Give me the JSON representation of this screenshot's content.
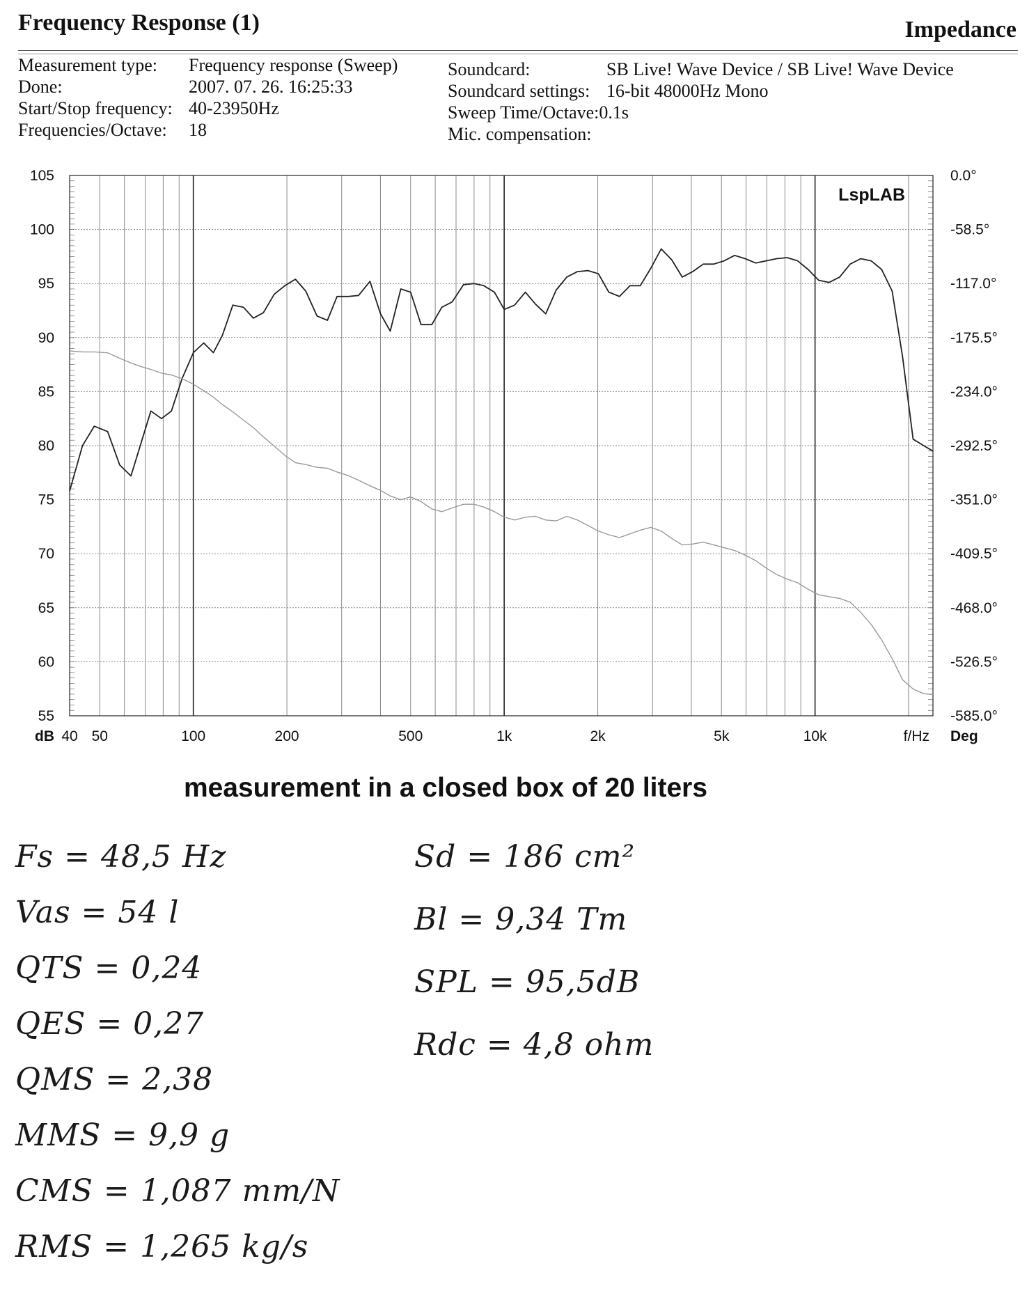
{
  "header": {
    "title": "Frequency Response (1)",
    "right_title": "Impedance"
  },
  "meta_left": [
    {
      "label": "Measurement type:",
      "value": "Frequency response (Sweep)"
    },
    {
      "label": "Done:",
      "value": "2007. 07. 26.  16:25:33"
    },
    {
      "label": "Start/Stop frequency:",
      "value": "40-23950Hz"
    },
    {
      "label": "Frequencies/Octave:",
      "value": "18"
    }
  ],
  "meta_right": [
    {
      "label": "Soundcard:",
      "value": "SB Live! Wave Device / SB Live! Wave Device"
    },
    {
      "label": "Soundcard settings:",
      "value": "16-bit  48000Hz  Mono"
    },
    {
      "label": "Sweep Time/Octave:",
      "value": "0.1s"
    },
    {
      "label": "Mic. compensation:",
      "value": ""
    }
  ],
  "chart_data": {
    "type": "line",
    "brand": "LspLAB",
    "xlabel": "f/Hz",
    "ylabel_left": "dB",
    "ylabel_right": "Deg",
    "x_scale": "log",
    "xlim": [
      40,
      23950
    ],
    "ylim": [
      55,
      105
    ],
    "ylim_right": [
      -585.0,
      0.0
    ],
    "x_tick_labels": [
      {
        "v": 40,
        "t": "40"
      },
      {
        "v": 50,
        "t": "50"
      },
      {
        "v": 100,
        "t": "100"
      },
      {
        "v": 200,
        "t": "200"
      },
      {
        "v": 500,
        "t": "500"
      },
      {
        "v": 1000,
        "t": "1k"
      },
      {
        "v": 2000,
        "t": "2k"
      },
      {
        "v": 5000,
        "t": "5k"
      },
      {
        "v": 10000,
        "t": "10k"
      }
    ],
    "y_ticks_left": [
      105,
      100,
      95,
      90,
      85,
      80,
      75,
      70,
      65,
      60,
      55
    ],
    "y_ticks_right": [
      "0.0°",
      "-58.5°",
      "-117.0°",
      "-175.5°",
      "-234.0°",
      "-292.5°",
      "-351.0°",
      "-409.5°",
      "-468.0°",
      "-526.5°",
      "-585.0°"
    ],
    "grid": true,
    "series": [
      {
        "color": "#222222",
        "x": [
          40,
          44,
          48,
          53,
          58,
          63,
          68,
          73,
          79,
          85,
          92,
          100,
          108,
          116,
          124,
          134,
          145,
          156,
          168,
          182,
          197,
          213,
          230,
          250,
          270,
          290,
          315,
          340,
          370,
          400,
          430,
          465,
          500,
          540,
          585,
          630,
          680,
          740,
          800,
          860,
          930,
          1000,
          1080,
          1170,
          1260,
          1360,
          1470,
          1590,
          1720,
          1860,
          2010,
          2170,
          2350,
          2540,
          2740,
          2960,
          3200,
          3460,
          3740,
          4040,
          4370,
          4720,
          5100,
          5510,
          5960,
          6440,
          6960,
          7520,
          8130,
          8790,
          9500,
          10270,
          11100,
          12000,
          12970,
          14020,
          15150,
          16380,
          17700,
          19130,
          20680,
          22350,
          23950
        ],
        "values": [
          75.8,
          80.0,
          81.8,
          81.3,
          78.2,
          77.2,
          80.3,
          83.2,
          82.5,
          83.2,
          86.2,
          88.6,
          89.5,
          88.6,
          90.2,
          93.0,
          92.8,
          91.8,
          92.3,
          94.0,
          94.8,
          95.4,
          94.3,
          92.0,
          91.6,
          93.8,
          93.8,
          93.9,
          95.2,
          92.2,
          90.6,
          94.5,
          94.2,
          91.2,
          91.2,
          92.8,
          93.3,
          94.9,
          95.0,
          94.8,
          94.2,
          92.6,
          93.0,
          94.2,
          93.1,
          92.2,
          94.4,
          95.6,
          96.1,
          96.2,
          95.9,
          94.2,
          93.8,
          94.8,
          94.8,
          96.4,
          98.2,
          97.2,
          95.6,
          96.1,
          96.8,
          96.8,
          97.1,
          97.6,
          97.3,
          96.9,
          97.1,
          97.3,
          97.4,
          97.1,
          96.3,
          95.3,
          95.1,
          95.6,
          96.8,
          97.3,
          97.1,
          96.3,
          94.3,
          88.2,
          80.6,
          80.0,
          79.5
        ]
      },
      {
        "color": "#9a9a9a",
        "x": [
          40,
          44,
          48,
          53,
          58,
          63,
          68,
          73,
          79,
          85,
          92,
          100,
          108,
          116,
          124,
          134,
          145,
          156,
          168,
          182,
          197,
          213,
          230,
          250,
          270,
          290,
          315,
          340,
          370,
          400,
          430,
          465,
          500,
          540,
          585,
          630,
          680,
          740,
          800,
          860,
          930,
          1000,
          1080,
          1170,
          1260,
          1360,
          1470,
          1590,
          1720,
          1860,
          2010,
          2170,
          2350,
          2540,
          2740,
          2960,
          3200,
          3460,
          3740,
          4040,
          4370,
          4720,
          5100,
          5510,
          5960,
          6440,
          6960,
          7520,
          8130,
          8790,
          9500,
          10270,
          11100,
          12000,
          12970,
          14020,
          15150,
          16380,
          17700,
          19130,
          20680,
          22350,
          23950
        ],
        "values": [
          -190.0,
          -191.0,
          -191.0,
          -192.0,
          -198.0,
          -203.0,
          -207.0,
          -210.0,
          -214.0,
          -216.0,
          -220.0,
          -226.0,
          -233.0,
          -240.0,
          -248.0,
          -256.0,
          -265.0,
          -273.0,
          -283.0,
          -293.0,
          -303.0,
          -311.0,
          -313.0,
          -316.0,
          -317.0,
          -321.0,
          -325.0,
          -330.0,
          -336.0,
          -341.0,
          -347.0,
          -351.0,
          -348.0,
          -353.0,
          -361.0,
          -364.0,
          -360.0,
          -356.0,
          -356.0,
          -359.0,
          -364.0,
          -370.0,
          -373.0,
          -370.0,
          -369.0,
          -373.0,
          -374.0,
          -369.0,
          -373.0,
          -379.0,
          -385.0,
          -389.0,
          -392.0,
          -388.0,
          -384.0,
          -381.0,
          -385.0,
          -393.0,
          -400.0,
          -399.0,
          -397.0,
          -400.0,
          -403.0,
          -406.0,
          -411.0,
          -417.0,
          -425.0,
          -432.0,
          -437.0,
          -441.0,
          -448.0,
          -454.0,
          -456.0,
          -458.0,
          -462.0,
          -473.0,
          -486.0,
          -503.0,
          -523.0,
          -546.0,
          -556.0,
          -561.0,
          -562.0
        ]
      }
    ]
  },
  "caption": "measurement in a closed box of 20 liters",
  "notes_left": [
    "Fs = 48,5 Hz",
    "Vas = 54 l",
    "QTS = 0,24",
    "QES = 0,27",
    "QMS = 2,38",
    "MMS = 9,9 g",
    "CMS = 1,087 mm/N",
    "RMS = 1,265 kg/s"
  ],
  "notes_right": [
    "Sd = 186 cm²",
    "Bl = 9,34 Tm",
    "SPL = 95,5dB",
    "Rdc = 4,8 ohm"
  ]
}
